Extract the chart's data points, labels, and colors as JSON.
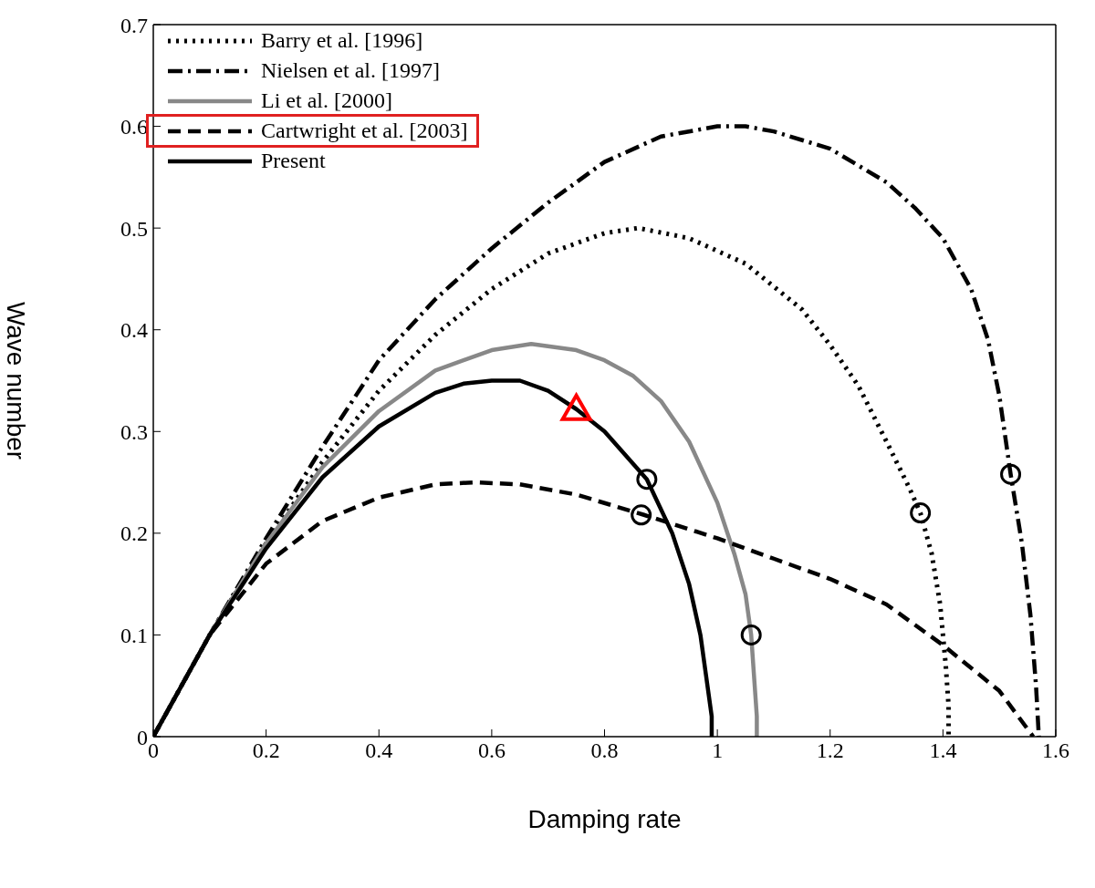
{
  "chart_data": {
    "type": "line",
    "xlabel": "Damping rate",
    "ylabel": "Wave number",
    "xlim": [
      0,
      1.6
    ],
    "ylim": [
      0,
      0.7
    ],
    "xticks": [
      0,
      0.2,
      0.4,
      0.6,
      0.8,
      1,
      1.2,
      1.4,
      1.6
    ],
    "yticks": [
      0,
      0.1,
      0.2,
      0.3,
      0.4,
      0.5,
      0.6,
      0.7
    ],
    "legend": "top left",
    "marker": "none",
    "series": [
      {
        "name": "Barry et al. [1996]",
        "type": "line",
        "line_style": "dotted",
        "color": "#000000",
        "x": [
          0,
          0.1,
          0.2,
          0.3,
          0.4,
          0.5,
          0.6,
          0.7,
          0.8,
          0.86,
          0.95,
          1.05,
          1.15,
          1.2,
          1.25,
          1.3,
          1.34,
          1.36,
          1.38,
          1.395,
          1.405,
          1.41,
          1.41
        ],
        "values": [
          0,
          0.1,
          0.19,
          0.27,
          0.34,
          0.395,
          0.44,
          0.475,
          0.495,
          0.5,
          0.49,
          0.465,
          0.42,
          0.385,
          0.345,
          0.29,
          0.245,
          0.22,
          0.18,
          0.13,
          0.07,
          0.03,
          0
        ]
      },
      {
        "name": "Nielsen et al. [1997]",
        "type": "line",
        "line_style": "dashdot",
        "color": "#000000",
        "x": [
          0,
          0.1,
          0.2,
          0.3,
          0.4,
          0.5,
          0.6,
          0.7,
          0.8,
          0.9,
          1.0,
          1.05,
          1.1,
          1.2,
          1.3,
          1.35,
          1.4,
          1.45,
          1.48,
          1.5,
          1.52,
          1.54,
          1.555,
          1.565,
          1.57
        ],
        "values": [
          0,
          0.1,
          0.195,
          0.285,
          0.37,
          0.43,
          0.48,
          0.525,
          0.565,
          0.59,
          0.6,
          0.6,
          0.595,
          0.578,
          0.545,
          0.52,
          0.49,
          0.44,
          0.39,
          0.335,
          0.258,
          0.19,
          0.12,
          0.05,
          0
        ]
      },
      {
        "name": "Li et al. [2000]",
        "type": "line",
        "line_style": "solid",
        "color": "#888888",
        "x": [
          0,
          0.1,
          0.2,
          0.3,
          0.4,
          0.5,
          0.6,
          0.67,
          0.75,
          0.8,
          0.85,
          0.9,
          0.95,
          1.0,
          1.03,
          1.05,
          1.06,
          1.065,
          1.07,
          1.07
        ],
        "values": [
          0,
          0.1,
          0.19,
          0.265,
          0.32,
          0.36,
          0.38,
          0.386,
          0.38,
          0.37,
          0.355,
          0.33,
          0.29,
          0.23,
          0.18,
          0.14,
          0.1,
          0.06,
          0.02,
          0
        ]
      },
      {
        "name": "Cartwright et al. [2003]",
        "type": "line",
        "line_style": "dashed",
        "color": "#000000",
        "x": [
          0,
          0.1,
          0.2,
          0.3,
          0.4,
          0.5,
          0.57,
          0.65,
          0.75,
          0.87,
          1.0,
          1.1,
          1.2,
          1.3,
          1.4,
          1.5,
          1.56
        ],
        "values": [
          0,
          0.1,
          0.17,
          0.212,
          0.235,
          0.248,
          0.25,
          0.248,
          0.238,
          0.218,
          0.195,
          0.175,
          0.155,
          0.13,
          0.09,
          0.045,
          0
        ]
      },
      {
        "name": "Present",
        "type": "line",
        "line_style": "solid",
        "color": "#000000",
        "x": [
          0,
          0.1,
          0.2,
          0.3,
          0.4,
          0.5,
          0.55,
          0.6,
          0.65,
          0.7,
          0.75,
          0.8,
          0.875,
          0.92,
          0.95,
          0.97,
          0.98,
          0.99,
          0.99
        ],
        "values": [
          0,
          0.1,
          0.185,
          0.255,
          0.305,
          0.338,
          0.347,
          0.35,
          0.35,
          0.34,
          0.322,
          0.3,
          0.253,
          0.2,
          0.15,
          0.1,
          0.06,
          0.02,
          0
        ]
      },
      {
        "type": "scatter",
        "marker": "circle",
        "color": "#000000",
        "x": [
          1.36,
          1.52,
          1.06,
          0.865,
          0.875
        ],
        "values": [
          0.22,
          0.258,
          0.1,
          0.218,
          0.253
        ]
      },
      {
        "type": "scatter",
        "marker": "triangle",
        "color": "#ff0000",
        "x": [
          0.75
        ],
        "values": [
          0.322
        ]
      }
    ]
  }
}
